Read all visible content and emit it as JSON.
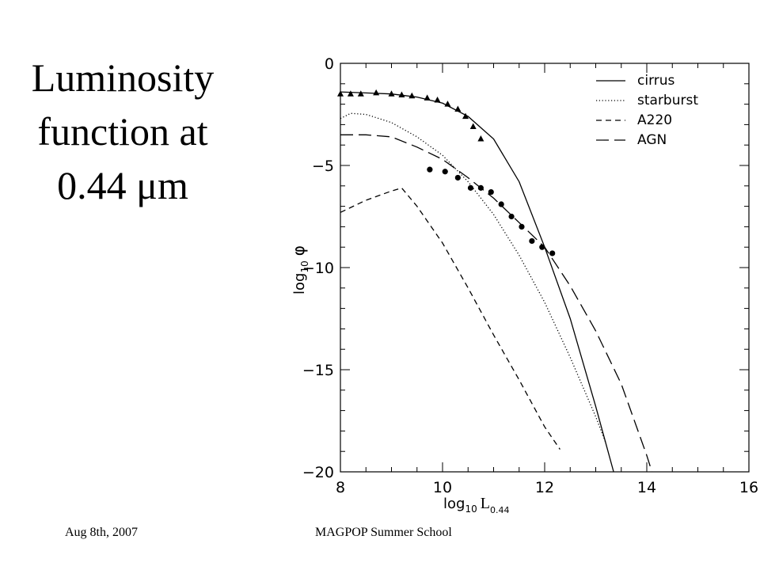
{
  "slide": {
    "title_lines": [
      "Luminosity",
      "function at",
      "0.44 μm"
    ],
    "footer_left": "Aug 8th, 2007",
    "footer_center": "MAGPOP Summer School"
  },
  "chart_data": {
    "type": "line",
    "xlabel_main": "log",
    "xlabel_sub": "10",
    "xlabel_var": "L",
    "xlabel_var_sub": "0.44",
    "ylabel_main": "log",
    "ylabel_sub": "10",
    "ylabel_var": "φ",
    "xlim": [
      8,
      16
    ],
    "ylim": [
      -20,
      0
    ],
    "xticks": [
      8,
      10,
      12,
      14,
      16
    ],
    "yticks": [
      0,
      -5,
      -10,
      -15,
      -20
    ],
    "ytick_labels": [
      "0",
      "−5",
      "−10",
      "−15",
      "−20"
    ],
    "grid": false,
    "legend_position": "top-right",
    "series": [
      {
        "name": "cirrus",
        "dash": "solid",
        "x": [
          8.0,
          8.5,
          9.0,
          9.5,
          10.0,
          10.5,
          11.0,
          11.5,
          12.0,
          12.5,
          13.0,
          13.35
        ],
        "y": [
          -1.4,
          -1.45,
          -1.5,
          -1.65,
          -1.95,
          -2.6,
          -3.7,
          -5.8,
          -9.0,
          -12.5,
          -16.8,
          -20.0
        ]
      },
      {
        "name": "starburst",
        "dash": "dotted",
        "x": [
          8.0,
          8.2,
          8.5,
          9.0,
          9.5,
          10.0,
          10.5,
          11.0,
          11.5,
          12.0,
          12.5,
          13.0,
          13.2
        ],
        "y": [
          -2.7,
          -2.45,
          -2.5,
          -2.9,
          -3.6,
          -4.5,
          -5.8,
          -7.4,
          -9.4,
          -11.7,
          -14.4,
          -17.3,
          -18.6
        ]
      },
      {
        "name": "A220",
        "dash": "short-dash",
        "x": [
          8.0,
          8.5,
          9.0,
          9.2,
          9.5,
          10.0,
          10.5,
          11.0,
          11.5,
          12.0,
          12.3
        ],
        "y": [
          -7.3,
          -6.7,
          -6.25,
          -6.1,
          -7.0,
          -8.8,
          -11.0,
          -13.3,
          -15.5,
          -17.8,
          -18.9
        ]
      },
      {
        "name": "AGN",
        "dash": "long-dash",
        "x": [
          8.0,
          8.5,
          9.0,
          9.5,
          10.0,
          10.5,
          11.0,
          11.5,
          12.0,
          12.5,
          13.0,
          13.5,
          14.0,
          14.1
        ],
        "y": [
          -3.5,
          -3.5,
          -3.6,
          -4.1,
          -4.7,
          -5.6,
          -6.6,
          -7.8,
          -9.0,
          -10.9,
          -13.1,
          -15.7,
          -19.2,
          -20.0
        ]
      }
    ],
    "observed_triangles": {
      "x": [
        8.0,
        8.2,
        8.4,
        8.7,
        9.0,
        9.2,
        9.4,
        9.7,
        9.9,
        10.1,
        10.3,
        10.45,
        10.6,
        10.75
      ],
      "y": [
        -1.5,
        -1.5,
        -1.5,
        -1.45,
        -1.5,
        -1.55,
        -1.6,
        -1.7,
        -1.8,
        -2.0,
        -2.25,
        -2.6,
        -3.1,
        -3.7
      ]
    },
    "observed_circles": {
      "x": [
        9.75,
        10.05,
        10.3,
        10.55,
        10.75,
        10.95,
        11.15,
        11.35,
        11.55,
        11.75,
        11.95,
        12.15
      ],
      "y": [
        -5.2,
        -5.3,
        -5.6,
        -6.1,
        -6.1,
        -6.3,
        -6.9,
        -7.5,
        -8.0,
        -8.7,
        -9.0,
        -9.3
      ]
    }
  }
}
